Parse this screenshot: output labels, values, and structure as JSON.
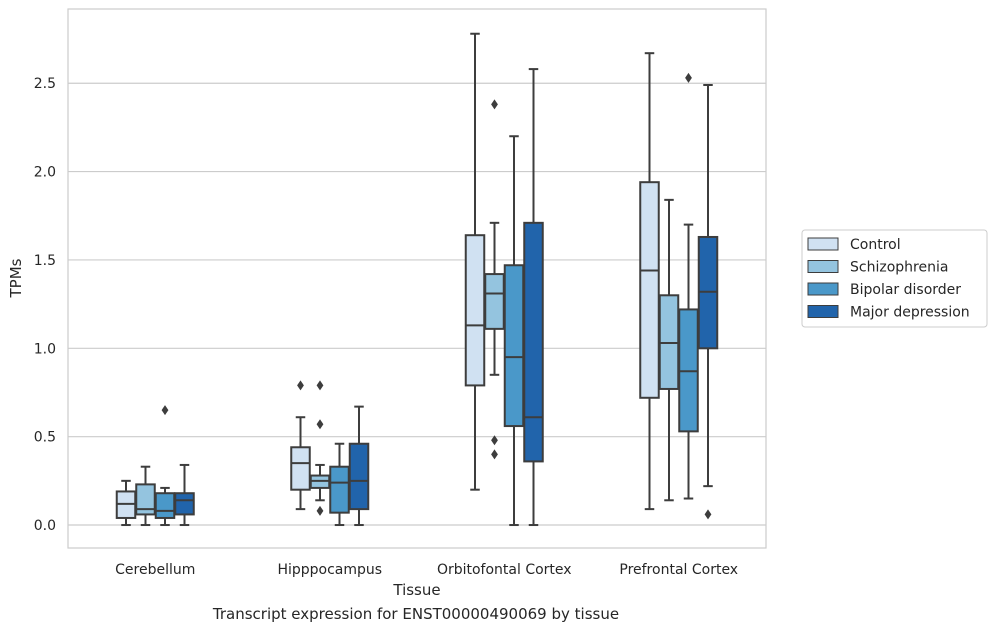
{
  "caption": "Transcript expression for ENST00000490069 by tissue",
  "chart_data": {
    "type": "boxplot",
    "title": "",
    "xlabel": "Tissue",
    "ylabel": "TPMs",
    "ylim": [
      -0.13,
      2.92
    ],
    "yticks": [
      0.0,
      0.5,
      1.0,
      1.5,
      2.0,
      2.5
    ],
    "ytick_labels": [
      "0.0",
      "0.5",
      "1.0",
      "1.5",
      "2.0",
      "2.5"
    ],
    "grid": "horizontal",
    "legend_position": "right",
    "categories": [
      "Cerebellum",
      "Hipppocampus",
      "Orbitofontal Cortex",
      "Prefrontal Cortex"
    ],
    "series": [
      {
        "name": "Control",
        "color": "#d0e1f2",
        "boxes": [
          {
            "whislo": 0.0,
            "q1": 0.04,
            "med": 0.12,
            "q3": 0.19,
            "whishi": 0.25,
            "fliers": []
          },
          {
            "whislo": 0.09,
            "q1": 0.2,
            "med": 0.35,
            "q3": 0.44,
            "whishi": 0.61,
            "fliers": [
              0.79
            ]
          },
          {
            "whislo": 0.2,
            "q1": 0.79,
            "med": 1.13,
            "q3": 1.64,
            "whishi": 2.78,
            "fliers": []
          },
          {
            "whislo": 0.09,
            "q1": 0.72,
            "med": 1.44,
            "q3": 1.94,
            "whishi": 2.67,
            "fliers": []
          }
        ]
      },
      {
        "name": "Schizophrenia",
        "color": "#94c4df",
        "boxes": [
          {
            "whislo": 0.0,
            "q1": 0.06,
            "med": 0.09,
            "q3": 0.23,
            "whishi": 0.33,
            "fliers": []
          },
          {
            "whislo": 0.14,
            "q1": 0.21,
            "med": 0.25,
            "q3": 0.28,
            "whishi": 0.34,
            "fliers": [
              0.08,
              0.57,
              0.79
            ]
          },
          {
            "whislo": 0.85,
            "q1": 1.11,
            "med": 1.31,
            "q3": 1.42,
            "whishi": 1.71,
            "fliers": [
              0.4,
              0.48,
              2.38
            ]
          },
          {
            "whislo": 0.14,
            "q1": 0.77,
            "med": 1.03,
            "q3": 1.3,
            "whishi": 1.84,
            "fliers": []
          }
        ]
      },
      {
        "name": "Bipolar disorder",
        "color": "#4a98c9",
        "boxes": [
          {
            "whislo": 0.0,
            "q1": 0.04,
            "med": 0.08,
            "q3": 0.18,
            "whishi": 0.21,
            "fliers": [
              0.65
            ]
          },
          {
            "whislo": 0.0,
            "q1": 0.07,
            "med": 0.24,
            "q3": 0.33,
            "whishi": 0.46,
            "fliers": []
          },
          {
            "whislo": 0.0,
            "q1": 0.56,
            "med": 0.95,
            "q3": 1.47,
            "whishi": 2.2,
            "fliers": []
          },
          {
            "whislo": 0.15,
            "q1": 0.53,
            "med": 0.87,
            "q3": 1.22,
            "whishi": 1.7,
            "fliers": [
              2.53
            ]
          }
        ]
      },
      {
        "name": "Major depression",
        "color": "#2164ab",
        "boxes": [
          {
            "whislo": 0.0,
            "q1": 0.06,
            "med": 0.14,
            "q3": 0.18,
            "whishi": 0.34,
            "fliers": []
          },
          {
            "whislo": 0.0,
            "q1": 0.09,
            "med": 0.25,
            "q3": 0.46,
            "whishi": 0.67,
            "fliers": []
          },
          {
            "whislo": 0.0,
            "q1": 0.36,
            "med": 0.61,
            "q3": 1.71,
            "whishi": 2.58,
            "fliers": []
          },
          {
            "whislo": 0.22,
            "q1": 1.0,
            "med": 1.32,
            "q3": 1.63,
            "whishi": 2.49,
            "fliers": [
              0.06
            ]
          }
        ]
      }
    ]
  }
}
